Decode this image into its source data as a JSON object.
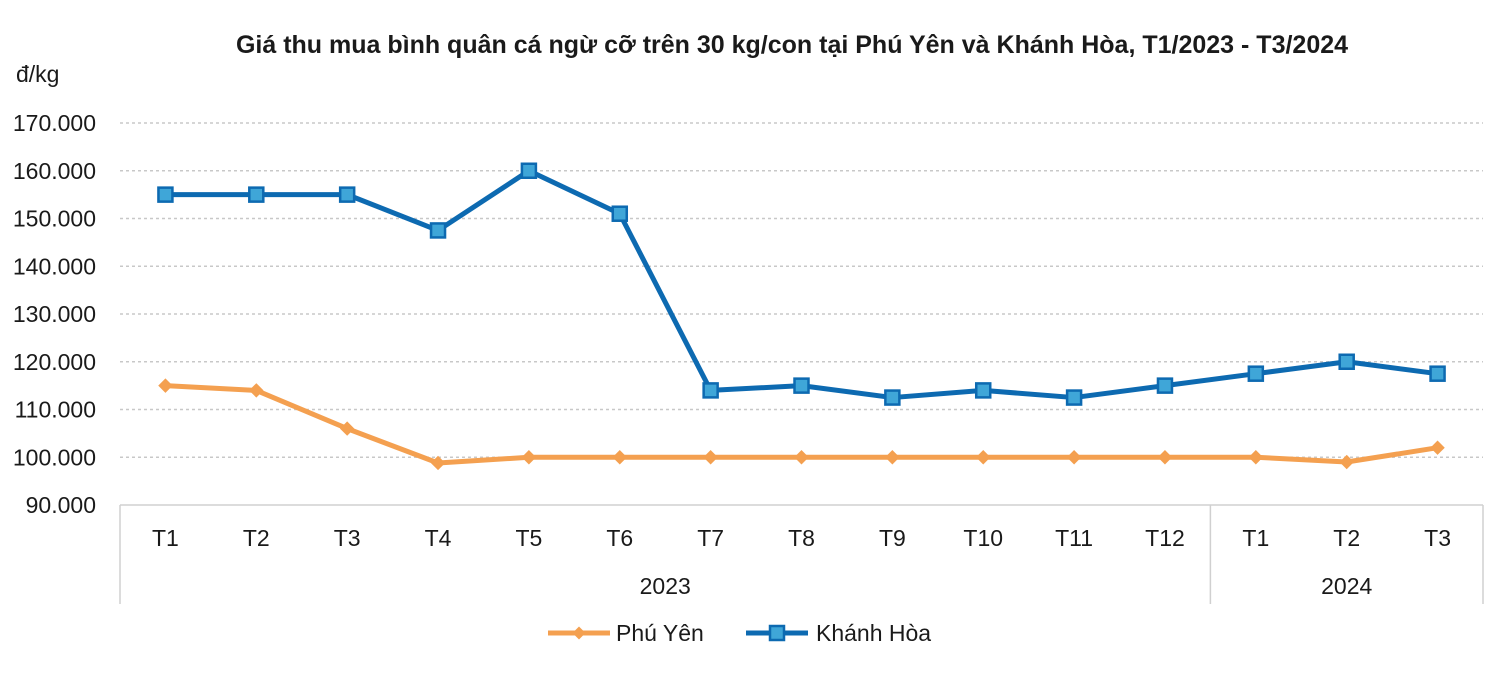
{
  "chart_data": {
    "type": "line",
    "title": "Giá thu mua bình quân cá ngừ cỡ trên 30 kg/con tại Phú Yên và Khánh Hòa, T1/2023 - T3/2024",
    "ylabel": "đ/kg",
    "xlabel": "",
    "ylim": [
      90000,
      170000
    ],
    "yticks": [
      "90.000",
      "100.000",
      "110.000",
      "120.000",
      "130.000",
      "140.000",
      "150.000",
      "160.000",
      "170.000"
    ],
    "ytick_values": [
      90000,
      100000,
      110000,
      120000,
      130000,
      140000,
      150000,
      160000,
      170000
    ],
    "categories": [
      "T1",
      "T2",
      "T3",
      "T4",
      "T5",
      "T6",
      "T7",
      "T8",
      "T9",
      "T10",
      "T11",
      "T12",
      "T1",
      "T2",
      "T3"
    ],
    "groups": [
      {
        "label": "2023",
        "count": 12
      },
      {
        "label": "2024",
        "count": 3
      }
    ],
    "grid": true,
    "legend_position": "bottom",
    "series": [
      {
        "name": "Phú Yên",
        "color": "#f4a050",
        "marker": "diamond",
        "values": [
          115000,
          114000,
          106000,
          98800,
          100000,
          100000,
          100000,
          100000,
          100000,
          100000,
          100000,
          100000,
          100000,
          99000,
          102000
        ]
      },
      {
        "name": "Khánh Hòa",
        "color": "#0d6ab1",
        "marker_fill": "#3fa6d8",
        "marker": "square",
        "values": [
          155000,
          155000,
          155000,
          147500,
          160000,
          151000,
          114000,
          115000,
          112500,
          114000,
          112500,
          115000,
          117500,
          120000,
          117500
        ]
      }
    ]
  }
}
